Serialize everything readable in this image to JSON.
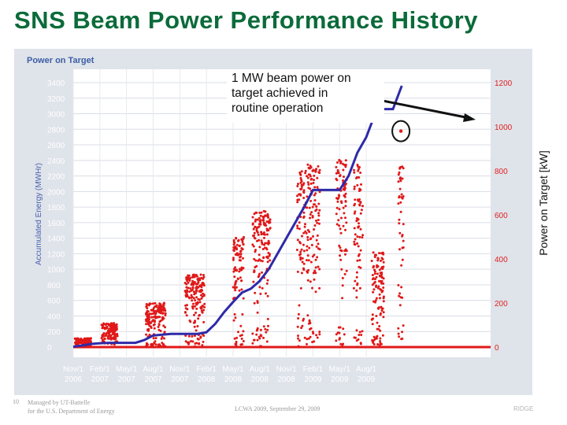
{
  "slide": {
    "title": "SNS Beam Power Performance History",
    "slide_number": "10",
    "managed_by_line1": "Managed by UT-Battelle",
    "managed_by_line2": "for the U.S. Department of Energy",
    "event": "LCWA 2009, September 29, 2009",
    "logo_text": "RIDGE"
  },
  "callout": {
    "line1": "1 MW beam power on",
    "line2": "target achieved in",
    "line3": "routine operation"
  },
  "colors": {
    "energy_line": "#2e2aa8",
    "power_points": "#e01818",
    "left_tick_text": "#ffffff",
    "right_tick_text": "#e02020",
    "annotation_circle": "#111111"
  },
  "chart_data": {
    "type": "line",
    "title": "Power on Target",
    "left_axis": {
      "label": "Accumulated Energy (MWHr)",
      "range": [
        0,
        3400
      ],
      "ticks": [
        0,
        200,
        400,
        600,
        800,
        1000,
        1200,
        1400,
        1600,
        1800,
        2000,
        2200,
        2400,
        2600,
        2800,
        3000,
        3200,
        3400
      ]
    },
    "right_axis": {
      "label": "Power on Target [kW]",
      "range": [
        0,
        1200
      ],
      "ticks": [
        0,
        200,
        400,
        600,
        800,
        1000,
        1200
      ]
    },
    "x_axis": {
      "range_months": [
        0,
        47
      ],
      "tick_months": [
        0,
        3,
        6,
        9,
        12,
        15,
        18,
        21,
        24,
        27,
        30,
        33
      ],
      "tick_labels": [
        [
          "Nov/1",
          "2006"
        ],
        [
          "Feb/1",
          "2007"
        ],
        [
          "May/1",
          "2007"
        ],
        [
          "Aug/1",
          "2007"
        ],
        [
          "Nov/1",
          "2007"
        ],
        [
          "Feb/1",
          "2008"
        ],
        [
          "May/1",
          "2008"
        ],
        [
          "Aug/1",
          "2008"
        ],
        [
          "Nov/1",
          "2008"
        ],
        [
          "Feb/1",
          "2009"
        ],
        [
          "May/1",
          "2009"
        ],
        [
          "Aug/1",
          "2009"
        ]
      ]
    },
    "series": [
      {
        "name": "Accumulated Energy",
        "axis": "left",
        "x": [
          0,
          1,
          2,
          3,
          4,
          5,
          6,
          7,
          8,
          9,
          10,
          11,
          12,
          13,
          14,
          15,
          16,
          17,
          18,
          19,
          20,
          21,
          22,
          23,
          24,
          25,
          26,
          27,
          28,
          29,
          30,
          31,
          32,
          33,
          34,
          35,
          36,
          37
        ],
        "values": [
          5,
          20,
          40,
          50,
          55,
          55,
          55,
          55,
          90,
          150,
          160,
          170,
          170,
          170,
          170,
          190,
          300,
          450,
          580,
          700,
          750,
          850,
          1000,
          1200,
          1400,
          1600,
          1800,
          2020,
          2020,
          2020,
          2020,
          2200,
          2500,
          2700,
          3000,
          3060,
          3060,
          3360
        ]
      },
      {
        "name": "Power on Target",
        "axis": "right",
        "bands": [
          {
            "x_from": 0.2,
            "x_to": 2.0,
            "y_low": 0,
            "y_high": 40
          },
          {
            "x_from": 3.2,
            "x_to": 5.0,
            "y_low": 0,
            "y_high": 110
          },
          {
            "x_from": 8.2,
            "x_to": 10.4,
            "y_low": 20,
            "y_high": 200
          },
          {
            "x_from": 12.6,
            "x_to": 14.8,
            "y_low": 60,
            "y_high": 330
          },
          {
            "x_from": 18.0,
            "x_to": 19.2,
            "y_low": 80,
            "y_high": 500
          },
          {
            "x_from": 20.2,
            "x_to": 22.2,
            "y_low": 100,
            "y_high": 620
          },
          {
            "x_from": 25.2,
            "x_to": 27.8,
            "y_low": 150,
            "y_high": 830
          },
          {
            "x_from": 29.6,
            "x_to": 30.8,
            "y_low": 100,
            "y_high": 850
          },
          {
            "x_from": 31.6,
            "x_to": 32.6,
            "y_low": 80,
            "y_high": 830
          },
          {
            "x_from": 33.6,
            "x_to": 35.0,
            "y_low": 50,
            "y_high": 430
          },
          {
            "x_from": 36.6,
            "x_to": 37.2,
            "y_low": 100,
            "y_high": 830
          }
        ],
        "highlight_point": {
          "x": 36.9,
          "y": 980
        }
      }
    ]
  }
}
